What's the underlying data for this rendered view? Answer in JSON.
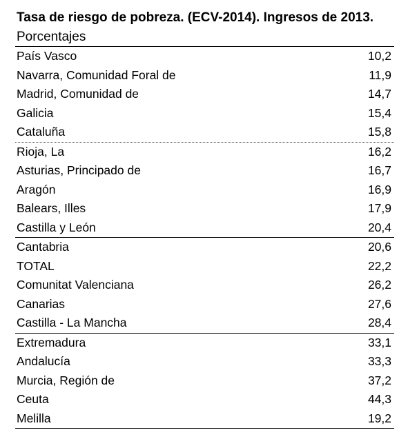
{
  "header": {
    "title_bold": "Tasa de riesgo de pobreza. (ECV-2014).  Ingresos de 2013.",
    "title_rest": "Porcentajes"
  },
  "table": {
    "rows": [
      [
        "País Vasco",
        "10,2"
      ],
      [
        "Navarra, Comunidad Foral de",
        "11,9"
      ],
      [
        "Madrid, Comunidad de",
        "14,7"
      ],
      [
        "Galicia",
        "15,4"
      ],
      [
        "Cataluña",
        "15,8"
      ],
      [
        "Rioja, La",
        "16,2"
      ],
      [
        "Asturias, Principado de",
        "16,7"
      ],
      [
        "Aragón",
        "16,9"
      ],
      [
        "Balears, Illes",
        "17,9"
      ],
      [
        "Castilla y León",
        "20,4"
      ],
      [
        "Cantabria",
        "20,6"
      ],
      [
        "TOTAL",
        "22,2"
      ],
      [
        "Comunitat Valenciana",
        "26,2"
      ],
      [
        "Canarias",
        "27,6"
      ],
      [
        "Castilla - La Mancha",
        "28,4"
      ],
      [
        "Extremadura",
        "33,1"
      ],
      [
        "Andalucía",
        "33,3"
      ],
      [
        "Murcia, Región de",
        "37,2"
      ],
      [
        "Ceuta",
        "44,3"
      ],
      [
        "Melilla",
        "19,2"
      ]
    ]
  }
}
